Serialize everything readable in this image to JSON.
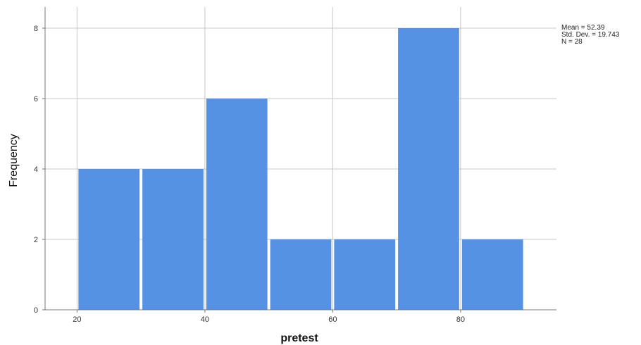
{
  "chart_data": {
    "type": "bar",
    "title": "",
    "xlabel": "pretest",
    "ylabel": "Frequency",
    "bins": [
      {
        "start": 20,
        "end": 30,
        "count": 4
      },
      {
        "start": 30,
        "end": 40,
        "count": 4
      },
      {
        "start": 40,
        "end": 50,
        "count": 6
      },
      {
        "start": 50,
        "end": 60,
        "count": 2
      },
      {
        "start": 60,
        "end": 70,
        "count": 2
      },
      {
        "start": 70,
        "end": 80,
        "count": 8
      },
      {
        "start": 80,
        "end": 90,
        "count": 2
      }
    ],
    "xlim": [
      15,
      95
    ],
    "ylim": [
      0,
      8.6
    ],
    "x_ticks": [
      20,
      40,
      60,
      80
    ],
    "y_ticks": [
      0,
      2,
      4,
      6,
      8
    ],
    "grid": true,
    "bar_color": "#5592e3",
    "stats": {
      "mean_label": "Mean = 52.39",
      "std_label": "Std. Dev. = 19.743",
      "n_label": "N = 28"
    }
  }
}
